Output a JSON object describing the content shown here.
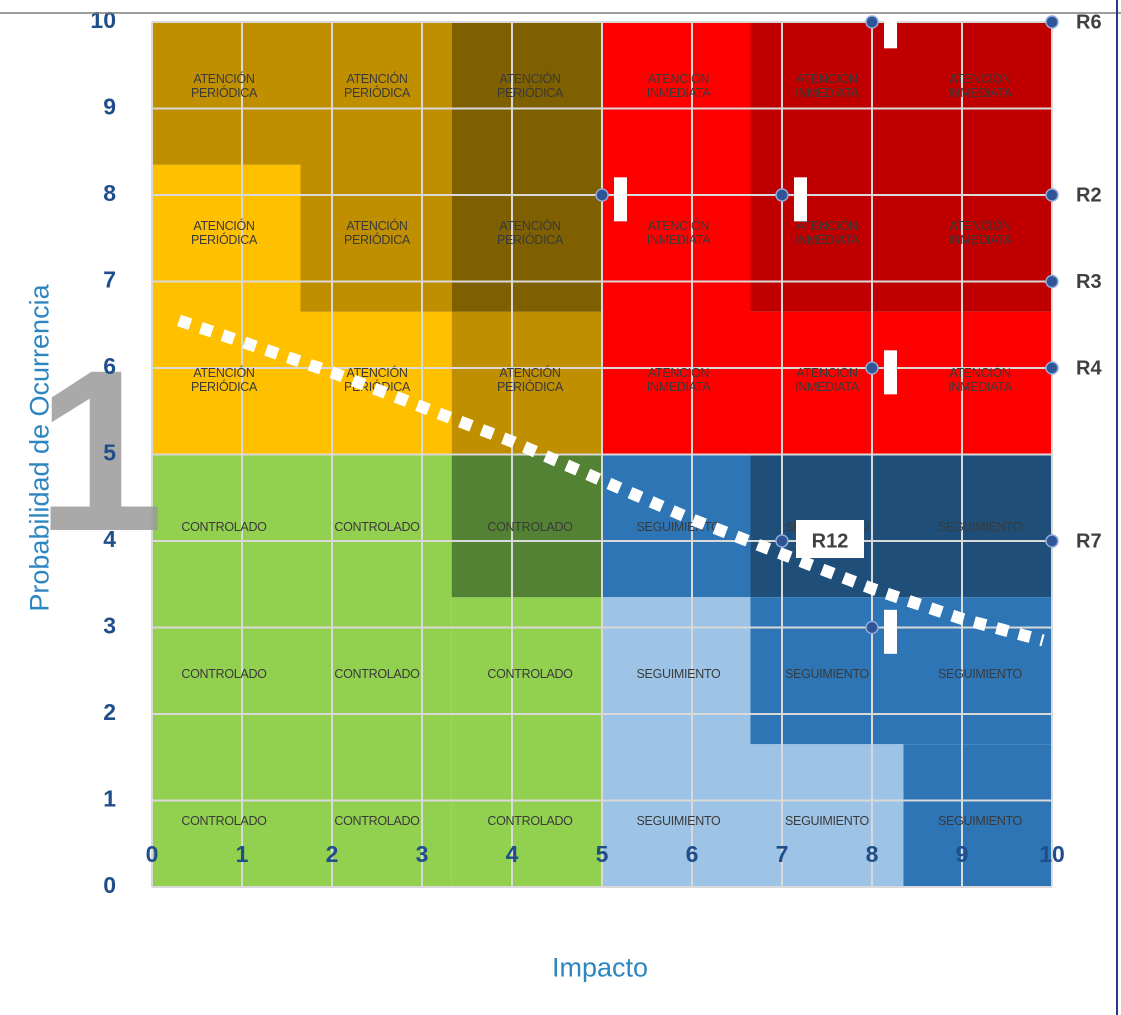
{
  "chart_data": {
    "type": "scatter",
    "title": "",
    "xlabel": "Impacto",
    "ylabel": "Probabilidad de Ocurrencia",
    "xlim": [
      0,
      10
    ],
    "ylim": [
      0,
      10
    ],
    "x_ticks": [
      "0",
      "1",
      "2",
      "3",
      "4",
      "5",
      "6",
      "7",
      "8",
      "9",
      "10"
    ],
    "y_ticks": [
      "0",
      "1",
      "2",
      "3",
      "4",
      "5",
      "6",
      "7",
      "8",
      "9",
      "10"
    ],
    "grid": true,
    "zones": [
      {
        "x": [
          0,
          1.65
        ],
        "y": [
          5,
          8.35
        ],
        "color": "#ffc000"
      },
      {
        "x": [
          1.65,
          3.33
        ],
        "y": [
          5,
          6.65
        ],
        "color": "#ffc000"
      },
      {
        "x": [
          1.65,
          3.33
        ],
        "y": [
          6.65,
          10
        ],
        "color": "#bf8f00"
      },
      {
        "x": [
          0,
          1.65
        ],
        "y": [
          8.35,
          10
        ],
        "color": "#bf8f00"
      },
      {
        "x": [
          3.33,
          5
        ],
        "y": [
          5,
          6.65
        ],
        "color": "#bf8f00"
      },
      {
        "x": [
          3.33,
          5
        ],
        "y": [
          6.65,
          10
        ],
        "color": "#7f6000"
      },
      {
        "x": [
          5,
          6.65
        ],
        "y": [
          5,
          10
        ],
        "color": "#ff0000"
      },
      {
        "x": [
          6.65,
          10
        ],
        "y": [
          5,
          6.65
        ],
        "color": "#ff0000"
      },
      {
        "x": [
          6.65,
          10
        ],
        "y": [
          6.65,
          10
        ],
        "color": "#c00000"
      },
      {
        "x": [
          0,
          3.33
        ],
        "y": [
          0,
          5
        ],
        "color": "#92d050"
      },
      {
        "x": [
          3.33,
          5
        ],
        "y": [
          0,
          3.35
        ],
        "color": "#92d050"
      },
      {
        "x": [
          3.33,
          5
        ],
        "y": [
          3.35,
          5
        ],
        "color": "#548235"
      },
      {
        "x": [
          5,
          6.65
        ],
        "y": [
          3.35,
          5
        ],
        "color": "#2e75b6"
      },
      {
        "x": [
          6.65,
          10
        ],
        "y": [
          3.35,
          5
        ],
        "color": "#1f4e79"
      },
      {
        "x": [
          5,
          6.65
        ],
        "y": [
          0,
          3.35
        ],
        "color": "#9dc3e6"
      },
      {
        "x": [
          6.65,
          10
        ],
        "y": [
          1.65,
          3.35
        ],
        "color": "#2e75b6"
      },
      {
        "x": [
          6.65,
          8.35
        ],
        "y": [
          0,
          1.65
        ],
        "color": "#9dc3e6"
      },
      {
        "x": [
          8.35,
          10
        ],
        "y": [
          0,
          1.65
        ],
        "color": "#2e75b6"
      }
    ],
    "zone_labels": [
      {
        "text": "ATENCIÓN\nPERIÓDICA",
        "x": 0.8,
        "y": 9.25
      },
      {
        "text": "ATENCIÓN\nPERIÓDICA",
        "x": 2.5,
        "y": 9.25
      },
      {
        "text": "ATENCIÓN\nPERIÓDICA",
        "x": 4.2,
        "y": 9.25
      },
      {
        "text": "ATENCIÓN\nINMEDIATA",
        "x": 5.85,
        "y": 9.25
      },
      {
        "text": "ATENCIÓN\nINMEDIATA",
        "x": 7.5,
        "y": 9.25
      },
      {
        "text": "ATENCIÓN\nINMEDIATA",
        "x": 9.2,
        "y": 9.25
      },
      {
        "text": "ATENCIÓN\nPERIÓDICA",
        "x": 0.8,
        "y": 7.55
      },
      {
        "text": "ATENCIÓN\nPERIÓDICA",
        "x": 2.5,
        "y": 7.55
      },
      {
        "text": "ATENCIÓN\nPERIÓDICA",
        "x": 4.2,
        "y": 7.55
      },
      {
        "text": "ATENCIÓN\nINMEDIATA",
        "x": 5.85,
        "y": 7.55
      },
      {
        "text": "ATENCIÓN\nINMEDIATA",
        "x": 7.5,
        "y": 7.55
      },
      {
        "text": "ATENCIÓN\nINMEDIATA",
        "x": 9.2,
        "y": 7.55
      },
      {
        "text": "ATENCIÓN\nPERIÓDICA",
        "x": 0.8,
        "y": 5.85
      },
      {
        "text": "ATENCIÓN\nPERIÓDICA",
        "x": 2.5,
        "y": 5.85
      },
      {
        "text": "ATENCIÓN\nPERIÓDICA",
        "x": 4.2,
        "y": 5.85
      },
      {
        "text": "ATENCIÓN\nINMEDIATA",
        "x": 5.85,
        "y": 5.85
      },
      {
        "text": "ATENCIÓN\nINMEDIATA",
        "x": 7.5,
        "y": 5.85
      },
      {
        "text": "ATENCIÓN\nINMEDIATA",
        "x": 9.2,
        "y": 5.85
      },
      {
        "text": "CONTROLADO",
        "x": 0.8,
        "y": 4.15
      },
      {
        "text": "CONTROLADO",
        "x": 2.5,
        "y": 4.15
      },
      {
        "text": "CONTROLADO",
        "x": 4.2,
        "y": 4.15
      },
      {
        "text": "SEGUIMIENTO",
        "x": 5.85,
        "y": 4.15
      },
      {
        "text": "SEGUIMIENTO",
        "x": 7.5,
        "y": 4.15
      },
      {
        "text": "SEGUIMIENTO",
        "x": 9.2,
        "y": 4.15
      },
      {
        "text": "CONTROLADO",
        "x": 0.8,
        "y": 2.45
      },
      {
        "text": "CONTROLADO",
        "x": 2.5,
        "y": 2.45
      },
      {
        "text": "CONTROLADO",
        "x": 4.2,
        "y": 2.45
      },
      {
        "text": "SEGUIMIENTO",
        "x": 5.85,
        "y": 2.45
      },
      {
        "text": "SEGUIMIENTO",
        "x": 7.5,
        "y": 2.45
      },
      {
        "text": "SEGUIMIENTO",
        "x": 9.2,
        "y": 2.45
      },
      {
        "text": "CONTROLADO",
        "x": 0.8,
        "y": 0.75
      },
      {
        "text": "CONTROLADO",
        "x": 2.5,
        "y": 0.75
      },
      {
        "text": "CONTROLADO",
        "x": 4.2,
        "y": 0.75
      },
      {
        "text": "SEGUIMIENTO",
        "x": 5.85,
        "y": 0.75
      },
      {
        "text": "SEGUIMIENTO",
        "x": 7.5,
        "y": 0.75
      },
      {
        "text": "SEGUIMIENTO",
        "x": 9.2,
        "y": 0.75
      }
    ],
    "points": [
      {
        "x": 8,
        "y": 10,
        "label": ""
      },
      {
        "x": 10,
        "y": 10,
        "label": "R6"
      },
      {
        "x": 5,
        "y": 8,
        "label": ""
      },
      {
        "x": 7,
        "y": 8,
        "label": ""
      },
      {
        "x": 10,
        "y": 8,
        "label": "R2"
      },
      {
        "x": 10,
        "y": 7,
        "label": "R3"
      },
      {
        "x": 8,
        "y": 6,
        "label": ""
      },
      {
        "x": 10,
        "y": 6,
        "label": "R4"
      },
      {
        "x": 7,
        "y": 4,
        "label": "R12"
      },
      {
        "x": 10,
        "y": 4,
        "label": "R7"
      },
      {
        "x": 8,
        "y": 3,
        "label": ""
      }
    ],
    "point_markers": [
      {
        "x": 8.2,
        "y": 9.95
      },
      {
        "x": 5.2,
        "y": 7.95
      },
      {
        "x": 7.2,
        "y": 7.95
      },
      {
        "x": 8.2,
        "y": 5.95
      },
      {
        "x": 8.2,
        "y": 2.95
      }
    ],
    "trend_line": [
      [
        0.3,
        6.55
      ],
      [
        2,
        5.95
      ],
      [
        4,
        5.15
      ],
      [
        5,
        4.7
      ],
      [
        6,
        4.25
      ],
      [
        7,
        3.85
      ],
      [
        8,
        3.45
      ],
      [
        9,
        3.1
      ],
      [
        9.9,
        2.85
      ]
    ],
    "watermark": "1",
    "colors": {
      "axis_text": "#1f4e8a",
      "axis_title": "#2e86c1",
      "grid": "#d9d9d9",
      "point": "#2f5597",
      "frame": "#1f3b8a"
    }
  }
}
